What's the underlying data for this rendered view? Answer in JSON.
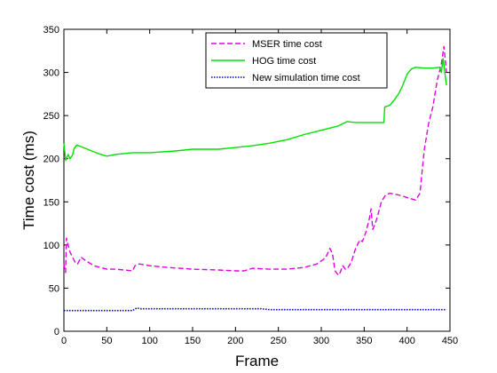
{
  "chart_data": {
    "type": "line",
    "title": "",
    "xlabel": "Frame",
    "ylabel": "Time cost (ms)",
    "xlim": [
      0,
      450
    ],
    "ylim": [
      0,
      350
    ],
    "xticks": [
      0,
      50,
      100,
      150,
      200,
      250,
      300,
      350,
      400,
      450
    ],
    "yticks": [
      0,
      50,
      100,
      150,
      200,
      250,
      300,
      350
    ],
    "grid": false,
    "legend": "top-right",
    "series": [
      {
        "name": "MSER time cost",
        "color": "#e000e0",
        "style": "dashed",
        "points": [
          [
            0,
            78
          ],
          [
            2,
            68
          ],
          [
            3,
            108
          ],
          [
            5,
            100
          ],
          [
            7,
            92
          ],
          [
            10,
            86
          ],
          [
            13,
            80
          ],
          [
            16,
            78
          ],
          [
            20,
            86
          ],
          [
            25,
            82
          ],
          [
            35,
            76
          ],
          [
            50,
            72
          ],
          [
            60,
            72
          ],
          [
            70,
            71
          ],
          [
            80,
            70
          ],
          [
            83,
            76
          ],
          [
            88,
            78
          ],
          [
            100,
            76
          ],
          [
            120,
            74
          ],
          [
            150,
            72
          ],
          [
            180,
            71
          ],
          [
            200,
            70
          ],
          [
            210,
            70
          ],
          [
            220,
            73
          ],
          [
            240,
            72
          ],
          [
            260,
            72
          ],
          [
            280,
            74
          ],
          [
            295,
            78
          ],
          [
            305,
            85
          ],
          [
            310,
            96
          ],
          [
            313,
            90
          ],
          [
            316,
            70
          ],
          [
            320,
            65
          ],
          [
            322,
            68
          ],
          [
            325,
            76
          ],
          [
            328,
            72
          ],
          [
            330,
            72
          ],
          [
            335,
            80
          ],
          [
            340,
            96
          ],
          [
            345,
            106
          ],
          [
            348,
            104
          ],
          [
            352,
            115
          ],
          [
            356,
            130
          ],
          [
            358,
            142
          ],
          [
            360,
            118
          ],
          [
            363,
            125
          ],
          [
            366,
            135
          ],
          [
            370,
            150
          ],
          [
            375,
            158
          ],
          [
            380,
            160
          ],
          [
            390,
            158
          ],
          [
            400,
            155
          ],
          [
            410,
            152
          ],
          [
            415,
            160
          ],
          [
            420,
            210
          ],
          [
            425,
            240
          ],
          [
            430,
            260
          ],
          [
            435,
            290
          ],
          [
            440,
            310
          ],
          [
            443,
            330
          ],
          [
            446,
            300
          ]
        ]
      },
      {
        "name": "HOG time cost",
        "color": "#00e000",
        "style": "solid",
        "points": [
          [
            0,
            218
          ],
          [
            2,
            198
          ],
          [
            5,
            205
          ],
          [
            7,
            200
          ],
          [
            10,
            204
          ],
          [
            12,
            212
          ],
          [
            15,
            216
          ],
          [
            20,
            214
          ],
          [
            30,
            210
          ],
          [
            40,
            206
          ],
          [
            50,
            203
          ],
          [
            60,
            205
          ],
          [
            80,
            207
          ],
          [
            100,
            207
          ],
          [
            130,
            209
          ],
          [
            150,
            211
          ],
          [
            180,
            211
          ],
          [
            200,
            213
          ],
          [
            220,
            215
          ],
          [
            240,
            218
          ],
          [
            260,
            222
          ],
          [
            280,
            228
          ],
          [
            300,
            233
          ],
          [
            320,
            238
          ],
          [
            330,
            243
          ],
          [
            340,
            242
          ],
          [
            355,
            242
          ],
          [
            370,
            242
          ],
          [
            373,
            242
          ],
          [
            374,
            260
          ],
          [
            380,
            262
          ],
          [
            385,
            268
          ],
          [
            390,
            275
          ],
          [
            395,
            285
          ],
          [
            400,
            298
          ],
          [
            405,
            304
          ],
          [
            410,
            306
          ],
          [
            420,
            305
          ],
          [
            430,
            305
          ],
          [
            438,
            306
          ],
          [
            440,
            300
          ],
          [
            442,
            316
          ],
          [
            444,
            300
          ],
          [
            446,
            285
          ]
        ]
      },
      {
        "name": "New simulation time cost",
        "color": "#0000c0",
        "style": "dotted",
        "points": [
          [
            0,
            24
          ],
          [
            50,
            24
          ],
          [
            80,
            24
          ],
          [
            85,
            27
          ],
          [
            90,
            26
          ],
          [
            120,
            26
          ],
          [
            150,
            26
          ],
          [
            200,
            26
          ],
          [
            230,
            26
          ],
          [
            240,
            25
          ],
          [
            260,
            25
          ],
          [
            300,
            25
          ],
          [
            350,
            25
          ],
          [
            400,
            25
          ],
          [
            446,
            25
          ]
        ]
      }
    ]
  }
}
